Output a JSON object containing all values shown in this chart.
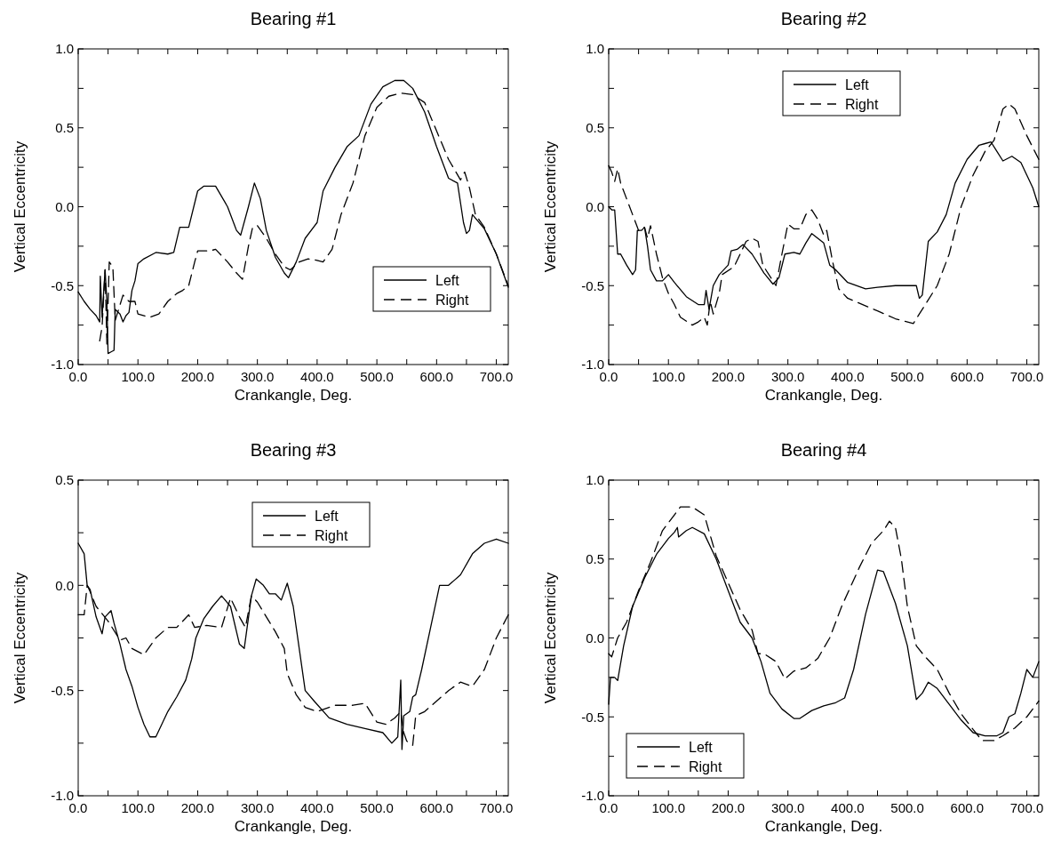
{
  "chart_data": [
    {
      "type": "line",
      "title": "Bearing #1",
      "xlabel": "Crankangle, Deg.",
      "ylabel": "Vertical Eccentricity",
      "xlim": [
        0,
        720
      ],
      "ylim": [
        -1,
        1
      ],
      "xticks": [
        {
          "value": 0,
          "label": "0.0"
        },
        {
          "value": 50,
          "label": null
        },
        {
          "value": 100,
          "label": "100.0"
        },
        {
          "value": 150,
          "label": null
        },
        {
          "value": 200,
          "label": "200.0"
        },
        {
          "value": 250,
          "label": null
        },
        {
          "value": 300,
          "label": "300.0"
        },
        {
          "value": 350,
          "label": null
        },
        {
          "value": 400,
          "label": "400.0"
        },
        {
          "value": 450,
          "label": null
        },
        {
          "value": 500,
          "label": "500.0"
        },
        {
          "value": 550,
          "label": null
        },
        {
          "value": 600,
          "label": "600.0"
        },
        {
          "value": 650,
          "label": null
        },
        {
          "value": 700,
          "label": "700.0"
        }
      ],
      "yticks": [
        {
          "value": -1,
          "label": "-1.0"
        },
        {
          "value": -0.75,
          "label": null
        },
        {
          "value": -0.5,
          "label": "-0.5"
        },
        {
          "value": -0.25,
          "label": null
        },
        {
          "value": 0,
          "label": "0.0"
        },
        {
          "value": 0.25,
          "label": null
        },
        {
          "value": 0.5,
          "label": "0.5"
        },
        {
          "value": 0.75,
          "label": null
        },
        {
          "value": 1,
          "label": "1.0"
        }
      ],
      "legend": "bottom right",
      "grid": false,
      "series": [
        {
          "name": "Left",
          "color": "#000000",
          "line_style": "solid",
          "x": [
            0,
            10,
            20,
            30,
            36,
            37,
            40,
            45,
            48,
            50,
            55,
            60,
            62,
            70,
            75,
            80,
            85,
            90,
            95,
            100,
            110,
            130,
            150,
            160,
            170,
            185,
            200,
            210,
            230,
            250,
            265,
            272,
            285,
            295,
            305,
            315,
            330,
            345,
            352,
            365,
            380,
            400,
            410,
            430,
            450,
            470,
            490,
            510,
            530,
            545,
            560,
            580,
            600,
            620,
            635,
            645,
            650,
            655,
            660,
            680,
            700,
            720
          ],
          "values": [
            -0.54,
            -0.6,
            -0.65,
            -0.69,
            -0.73,
            -0.44,
            -0.7,
            -0.4,
            -0.6,
            -0.93,
            -0.92,
            -0.91,
            -0.65,
            -0.68,
            -0.73,
            -0.69,
            -0.67,
            -0.53,
            -0.47,
            -0.36,
            -0.33,
            -0.29,
            -0.3,
            -0.29,
            -0.13,
            -0.13,
            0.1,
            0.13,
            0.13,
            0,
            -0.15,
            -0.18,
            0,
            0.15,
            0.05,
            -0.15,
            -0.32,
            -0.42,
            -0.45,
            -0.35,
            -0.2,
            -0.1,
            0.1,
            0.25,
            0.38,
            0.45,
            0.65,
            0.76,
            0.8,
            0.8,
            0.75,
            0.6,
            0.38,
            0.18,
            0.15,
            -0.1,
            -0.17,
            -0.15,
            -0.05,
            -0.14,
            -0.3,
            -0.51
          ]
        },
        {
          "name": "Right",
          "color": "#000000",
          "line_style": "dashed",
          "x": [
            36,
            40,
            45,
            48,
            52,
            58,
            62,
            75,
            85,
            95,
            100,
            120,
            135,
            150,
            165,
            175,
            185,
            195,
            200,
            220,
            230,
            250,
            265,
            275,
            285,
            292,
            300,
            315,
            330,
            345,
            355,
            370,
            385,
            400,
            410,
            425,
            440,
            460,
            480,
            500,
            520,
            540,
            560,
            580,
            600,
            620,
            640,
            647,
            655,
            665,
            680,
            700,
            720
          ],
          "values": [
            -0.85,
            -0.76,
            -0.4,
            -0.87,
            -0.35,
            -0.38,
            -0.72,
            -0.56,
            -0.6,
            -0.6,
            -0.68,
            -0.7,
            -0.68,
            -0.6,
            -0.55,
            -0.53,
            -0.5,
            -0.35,
            -0.28,
            -0.28,
            -0.27,
            -0.35,
            -0.42,
            -0.46,
            -0.25,
            -0.13,
            -0.12,
            -0.2,
            -0.3,
            -0.38,
            -0.4,
            -0.35,
            -0.33,
            -0.34,
            -0.35,
            -0.27,
            -0.05,
            0.15,
            0.45,
            0.63,
            0.7,
            0.72,
            0.71,
            0.66,
            0.48,
            0.3,
            0.17,
            0.22,
            0.12,
            -0.05,
            -0.13,
            -0.3,
            -0.5
          ]
        }
      ]
    },
    {
      "type": "line",
      "title": "Bearing #2",
      "xlabel": "Crankangle, Deg.",
      "ylabel": "Vertical Eccentricity",
      "xlim": [
        0,
        720
      ],
      "ylim": [
        -1,
        1
      ],
      "xticks": [
        {
          "value": 0,
          "label": "0.0"
        },
        {
          "value": 50,
          "label": null
        },
        {
          "value": 100,
          "label": "100.0"
        },
        {
          "value": 150,
          "label": null
        },
        {
          "value": 200,
          "label": "200.0"
        },
        {
          "value": 250,
          "label": null
        },
        {
          "value": 300,
          "label": "300.0"
        },
        {
          "value": 350,
          "label": null
        },
        {
          "value": 400,
          "label": "400.0"
        },
        {
          "value": 450,
          "label": null
        },
        {
          "value": 500,
          "label": "500.0"
        },
        {
          "value": 550,
          "label": null
        },
        {
          "value": 600,
          "label": "600.0"
        },
        {
          "value": 650,
          "label": null
        },
        {
          "value": 700,
          "label": "700.0"
        }
      ],
      "yticks": [
        {
          "value": -1,
          "label": "-1.0"
        },
        {
          "value": -0.75,
          "label": null
        },
        {
          "value": -0.5,
          "label": "-0.5"
        },
        {
          "value": -0.25,
          "label": null
        },
        {
          "value": 0,
          "label": "0.0"
        },
        {
          "value": 0.25,
          "label": null
        },
        {
          "value": 0.5,
          "label": "0.5"
        },
        {
          "value": 0.75,
          "label": null
        },
        {
          "value": 1,
          "label": "1.0"
        }
      ],
      "legend": "top",
      "grid": false,
      "series": [
        {
          "name": "Left",
          "color": "#000000",
          "line_style": "solid",
          "x": [
            0,
            5,
            10,
            15,
            20,
            30,
            40,
            45,
            48,
            55,
            60,
            65,
            70,
            80,
            90,
            100,
            110,
            130,
            150,
            160,
            163,
            168,
            175,
            185,
            200,
            205,
            215,
            225,
            240,
            260,
            275,
            285,
            295,
            310,
            320,
            330,
            340,
            350,
            360,
            370,
            380,
            400,
            430,
            450,
            480,
            500,
            515,
            520,
            525,
            535,
            550,
            565,
            580,
            600,
            620,
            630,
            640,
            650,
            660,
            675,
            690,
            710,
            720
          ],
          "values": [
            0,
            -0.02,
            -0.02,
            -0.3,
            -0.3,
            -0.37,
            -0.43,
            -0.4,
            -0.15,
            -0.15,
            -0.13,
            -0.25,
            -0.4,
            -0.47,
            -0.47,
            -0.43,
            -0.48,
            -0.57,
            -0.62,
            -0.62,
            -0.53,
            -0.65,
            -0.5,
            -0.43,
            -0.37,
            -0.28,
            -0.27,
            -0.24,
            -0.3,
            -0.42,
            -0.49,
            -0.45,
            -0.3,
            -0.29,
            -0.3,
            -0.23,
            -0.17,
            -0.2,
            -0.23,
            -0.37,
            -0.4,
            -0.48,
            -0.52,
            -0.51,
            -0.5,
            -0.5,
            -0.5,
            -0.58,
            -0.56,
            -0.22,
            -0.16,
            -0.05,
            0.15,
            0.3,
            0.39,
            0.4,
            0.41,
            0.35,
            0.29,
            0.32,
            0.28,
            0.12,
            0
          ]
        },
        {
          "name": "Right",
          "color": "#000000",
          "line_style": "dashed",
          "x": [
            0,
            5,
            10,
            15,
            20,
            30,
            40,
            50,
            60,
            65,
            70,
            80,
            90,
            100,
            110,
            120,
            140,
            150,
            160,
            165,
            170,
            175,
            185,
            190,
            210,
            230,
            240,
            250,
            258,
            280,
            290,
            300,
            310,
            320,
            330,
            340,
            350,
            360,
            365,
            375,
            385,
            400,
            450,
            480,
            510,
            520,
            530,
            550,
            570,
            590,
            610,
            630,
            645,
            660,
            670,
            680,
            700,
            720
          ],
          "values": [
            0.26,
            0.22,
            0.16,
            0.24,
            0.15,
            0.05,
            -0.05,
            -0.15,
            -0.13,
            -0.2,
            -0.12,
            -0.3,
            -0.45,
            -0.55,
            -0.62,
            -0.7,
            -0.75,
            -0.73,
            -0.7,
            -0.75,
            -0.6,
            -0.68,
            -0.55,
            -0.43,
            -0.38,
            -0.22,
            -0.2,
            -0.22,
            -0.37,
            -0.5,
            -0.3,
            -0.11,
            -0.14,
            -0.14,
            -0.05,
            -0.02,
            -0.08,
            -0.18,
            -0.15,
            -0.35,
            -0.52,
            -0.58,
            -0.66,
            -0.71,
            -0.74,
            -0.68,
            -0.62,
            -0.5,
            -0.3,
            0,
            0.2,
            0.35,
            0.42,
            0.62,
            0.65,
            0.62,
            0.45,
            0.3
          ]
        }
      ]
    },
    {
      "type": "line",
      "title": "Bearing #3",
      "xlabel": "Crankangle, Deg.",
      "ylabel": "Vertical Eccentricity",
      "xlim": [
        0,
        720
      ],
      "ylim": [
        -1,
        0.5
      ],
      "xticks": [
        {
          "value": 0,
          "label": "0.0"
        },
        {
          "value": 50,
          "label": null
        },
        {
          "value": 100,
          "label": "100.0"
        },
        {
          "value": 150,
          "label": null
        },
        {
          "value": 200,
          "label": "200.0"
        },
        {
          "value": 250,
          "label": null
        },
        {
          "value": 300,
          "label": "300.0"
        },
        {
          "value": 350,
          "label": null
        },
        {
          "value": 400,
          "label": "400.0"
        },
        {
          "value": 450,
          "label": null
        },
        {
          "value": 500,
          "label": "500.0"
        },
        {
          "value": 550,
          "label": null
        },
        {
          "value": 600,
          "label": "600.0"
        },
        {
          "value": 650,
          "label": null
        },
        {
          "value": 700,
          "label": "700.0"
        }
      ],
      "yticks": [
        {
          "value": -1,
          "label": "-1.0"
        },
        {
          "value": -0.75,
          "label": null
        },
        {
          "value": -0.5,
          "label": "-0.5"
        },
        {
          "value": -0.25,
          "label": null
        },
        {
          "value": 0,
          "label": "0.0"
        },
        {
          "value": 0.25,
          "label": null
        },
        {
          "value": 0.5,
          "label": "0.5"
        }
      ],
      "legend": "top",
      "grid": false,
      "series": [
        {
          "name": "Left",
          "color": "#000000",
          "line_style": "solid",
          "x": [
            0,
            10,
            15,
            20,
            30,
            40,
            45,
            55,
            60,
            70,
            80,
            90,
            100,
            110,
            120,
            130,
            140,
            150,
            165,
            180,
            190,
            197,
            210,
            225,
            240,
            255,
            270,
            278,
            290,
            298,
            310,
            320,
            330,
            340,
            350,
            360,
            370,
            380,
            395,
            420,
            450,
            480,
            510,
            525,
            535,
            540,
            542,
            545,
            555,
            560,
            565,
            575,
            590,
            605,
            620,
            640,
            660,
            680,
            700,
            720
          ],
          "values": [
            0.2,
            0.15,
            0,
            -0.02,
            -0.15,
            -0.23,
            -0.15,
            -0.12,
            -0.18,
            -0.28,
            -0.4,
            -0.48,
            -0.58,
            -0.66,
            -0.72,
            -0.72,
            -0.66,
            -0.6,
            -0.53,
            -0.45,
            -0.35,
            -0.25,
            -0.16,
            -0.1,
            -0.05,
            -0.1,
            -0.28,
            -0.3,
            -0.05,
            0.03,
            0,
            -0.04,
            -0.04,
            -0.07,
            0.01,
            -0.1,
            -0.3,
            -0.5,
            -0.55,
            -0.63,
            -0.66,
            -0.68,
            -0.7,
            -0.75,
            -0.72,
            -0.45,
            -0.78,
            -0.62,
            -0.6,
            -0.53,
            -0.52,
            -0.4,
            -0.2,
            0,
            0,
            0.05,
            0.15,
            0.2,
            0.22,
            0.2
          ]
        },
        {
          "name": "Right",
          "color": "#000000",
          "line_style": "dashed",
          "x": [
            0,
            10,
            15,
            20,
            30,
            50,
            70,
            80,
            90,
            110,
            130,
            150,
            165,
            185,
            195,
            215,
            240,
            255,
            270,
            280,
            290,
            300,
            315,
            330,
            345,
            350,
            365,
            380,
            400,
            420,
            430,
            460,
            480,
            500,
            515,
            530,
            540,
            545,
            550,
            560,
            565,
            580,
            600,
            620,
            640,
            660,
            680,
            700,
            720
          ],
          "values": [
            -0.14,
            -0.14,
            0,
            -0.03,
            -0.1,
            -0.17,
            -0.26,
            -0.25,
            -0.3,
            -0.33,
            -0.25,
            -0.2,
            -0.2,
            -0.14,
            -0.2,
            -0.19,
            -0.2,
            -0.06,
            -0.15,
            -0.2,
            -0.05,
            -0.08,
            -0.15,
            -0.22,
            -0.3,
            -0.42,
            -0.52,
            -0.58,
            -0.6,
            -0.58,
            -0.57,
            -0.57,
            -0.56,
            -0.65,
            -0.66,
            -0.63,
            -0.6,
            -0.7,
            -0.74,
            -0.76,
            -0.62,
            -0.6,
            -0.55,
            -0.5,
            -0.46,
            -0.48,
            -0.4,
            -0.25,
            -0.14
          ]
        }
      ]
    },
    {
      "type": "line",
      "title": "Bearing #4",
      "xlabel": "Crankangle, Deg.",
      "ylabel": "Vertical Eccentricity",
      "xlim": [
        0,
        720
      ],
      "ylim": [
        -1,
        1
      ],
      "xticks": [
        {
          "value": 0,
          "label": "0.0"
        },
        {
          "value": 50,
          "label": null
        },
        {
          "value": 100,
          "label": "100.0"
        },
        {
          "value": 150,
          "label": null
        },
        {
          "value": 200,
          "label": "200.0"
        },
        {
          "value": 250,
          "label": null
        },
        {
          "value": 300,
          "label": "300.0"
        },
        {
          "value": 350,
          "label": null
        },
        {
          "value": 400,
          "label": "400.0"
        },
        {
          "value": 450,
          "label": null
        },
        {
          "value": 500,
          "label": "500.0"
        },
        {
          "value": 550,
          "label": null
        },
        {
          "value": 600,
          "label": "600.0"
        },
        {
          "value": 650,
          "label": null
        },
        {
          "value": 700,
          "label": "700.0"
        }
      ],
      "yticks": [
        {
          "value": -1,
          "label": "-1.0"
        },
        {
          "value": -0.75,
          "label": null
        },
        {
          "value": -0.5,
          "label": "-0.5"
        },
        {
          "value": -0.25,
          "label": null
        },
        {
          "value": 0,
          "label": "0.0"
        },
        {
          "value": 0.25,
          "label": null
        },
        {
          "value": 0.5,
          "label": "0.5"
        },
        {
          "value": 0.75,
          "label": null
        },
        {
          "value": 1,
          "label": "1.0"
        }
      ],
      "legend": "bottom left",
      "grid": false,
      "series": [
        {
          "name": "Left",
          "color": "#000000",
          "line_style": "solid",
          "x": [
            0,
            3,
            10,
            15,
            25,
            40,
            60,
            80,
            100,
            110,
            115,
            117,
            130,
            140,
            160,
            180,
            200,
            220,
            240,
            255,
            270,
            290,
            310,
            320,
            340,
            360,
            380,
            395,
            410,
            430,
            450,
            460,
            480,
            500,
            515,
            525,
            535,
            550,
            570,
            590,
            610,
            630,
            650,
            660,
            670,
            680,
            690,
            700,
            710,
            720
          ],
          "values": [
            -0.42,
            -0.25,
            -0.25,
            -0.27,
            -0.05,
            0.2,
            0.38,
            0.53,
            0.63,
            0.67,
            0.7,
            0.64,
            0.68,
            0.7,
            0.66,
            0.5,
            0.3,
            0.1,
            0,
            -0.15,
            -0.35,
            -0.45,
            -0.51,
            -0.51,
            -0.46,
            -0.43,
            -0.41,
            -0.38,
            -0.2,
            0.15,
            0.43,
            0.42,
            0.22,
            -0.05,
            -0.39,
            -0.35,
            -0.28,
            -0.32,
            -0.42,
            -0.52,
            -0.6,
            -0.62,
            -0.62,
            -0.6,
            -0.5,
            -0.48,
            -0.35,
            -0.2,
            -0.25,
            -0.15
          ]
        },
        {
          "name": "Right",
          "color": "#000000",
          "line_style": "dashed",
          "x": [
            0,
            5,
            15,
            30,
            50,
            70,
            90,
            110,
            120,
            140,
            160,
            180,
            200,
            220,
            240,
            250,
            260,
            280,
            295,
            310,
            330,
            350,
            370,
            390,
            420,
            440,
            460,
            470,
            480,
            490,
            500,
            515,
            530,
            550,
            570,
            590,
            610,
            625,
            645,
            660,
            680,
            700,
            720
          ],
          "values": [
            -0.1,
            -0.12,
            0,
            0.1,
            0.3,
            0.48,
            0.68,
            0.78,
            0.83,
            0.83,
            0.78,
            0.52,
            0.35,
            0.18,
            0.05,
            -0.1,
            -0.1,
            -0.15,
            -0.26,
            -0.21,
            -0.19,
            -0.13,
            0,
            0.2,
            0.45,
            0.6,
            0.68,
            0.74,
            0.7,
            0.5,
            0.2,
            -0.05,
            -0.12,
            -0.2,
            -0.35,
            -0.48,
            -0.58,
            -0.65,
            -0.65,
            -0.62,
            -0.57,
            -0.5,
            -0.4
          ]
        }
      ]
    }
  ]
}
